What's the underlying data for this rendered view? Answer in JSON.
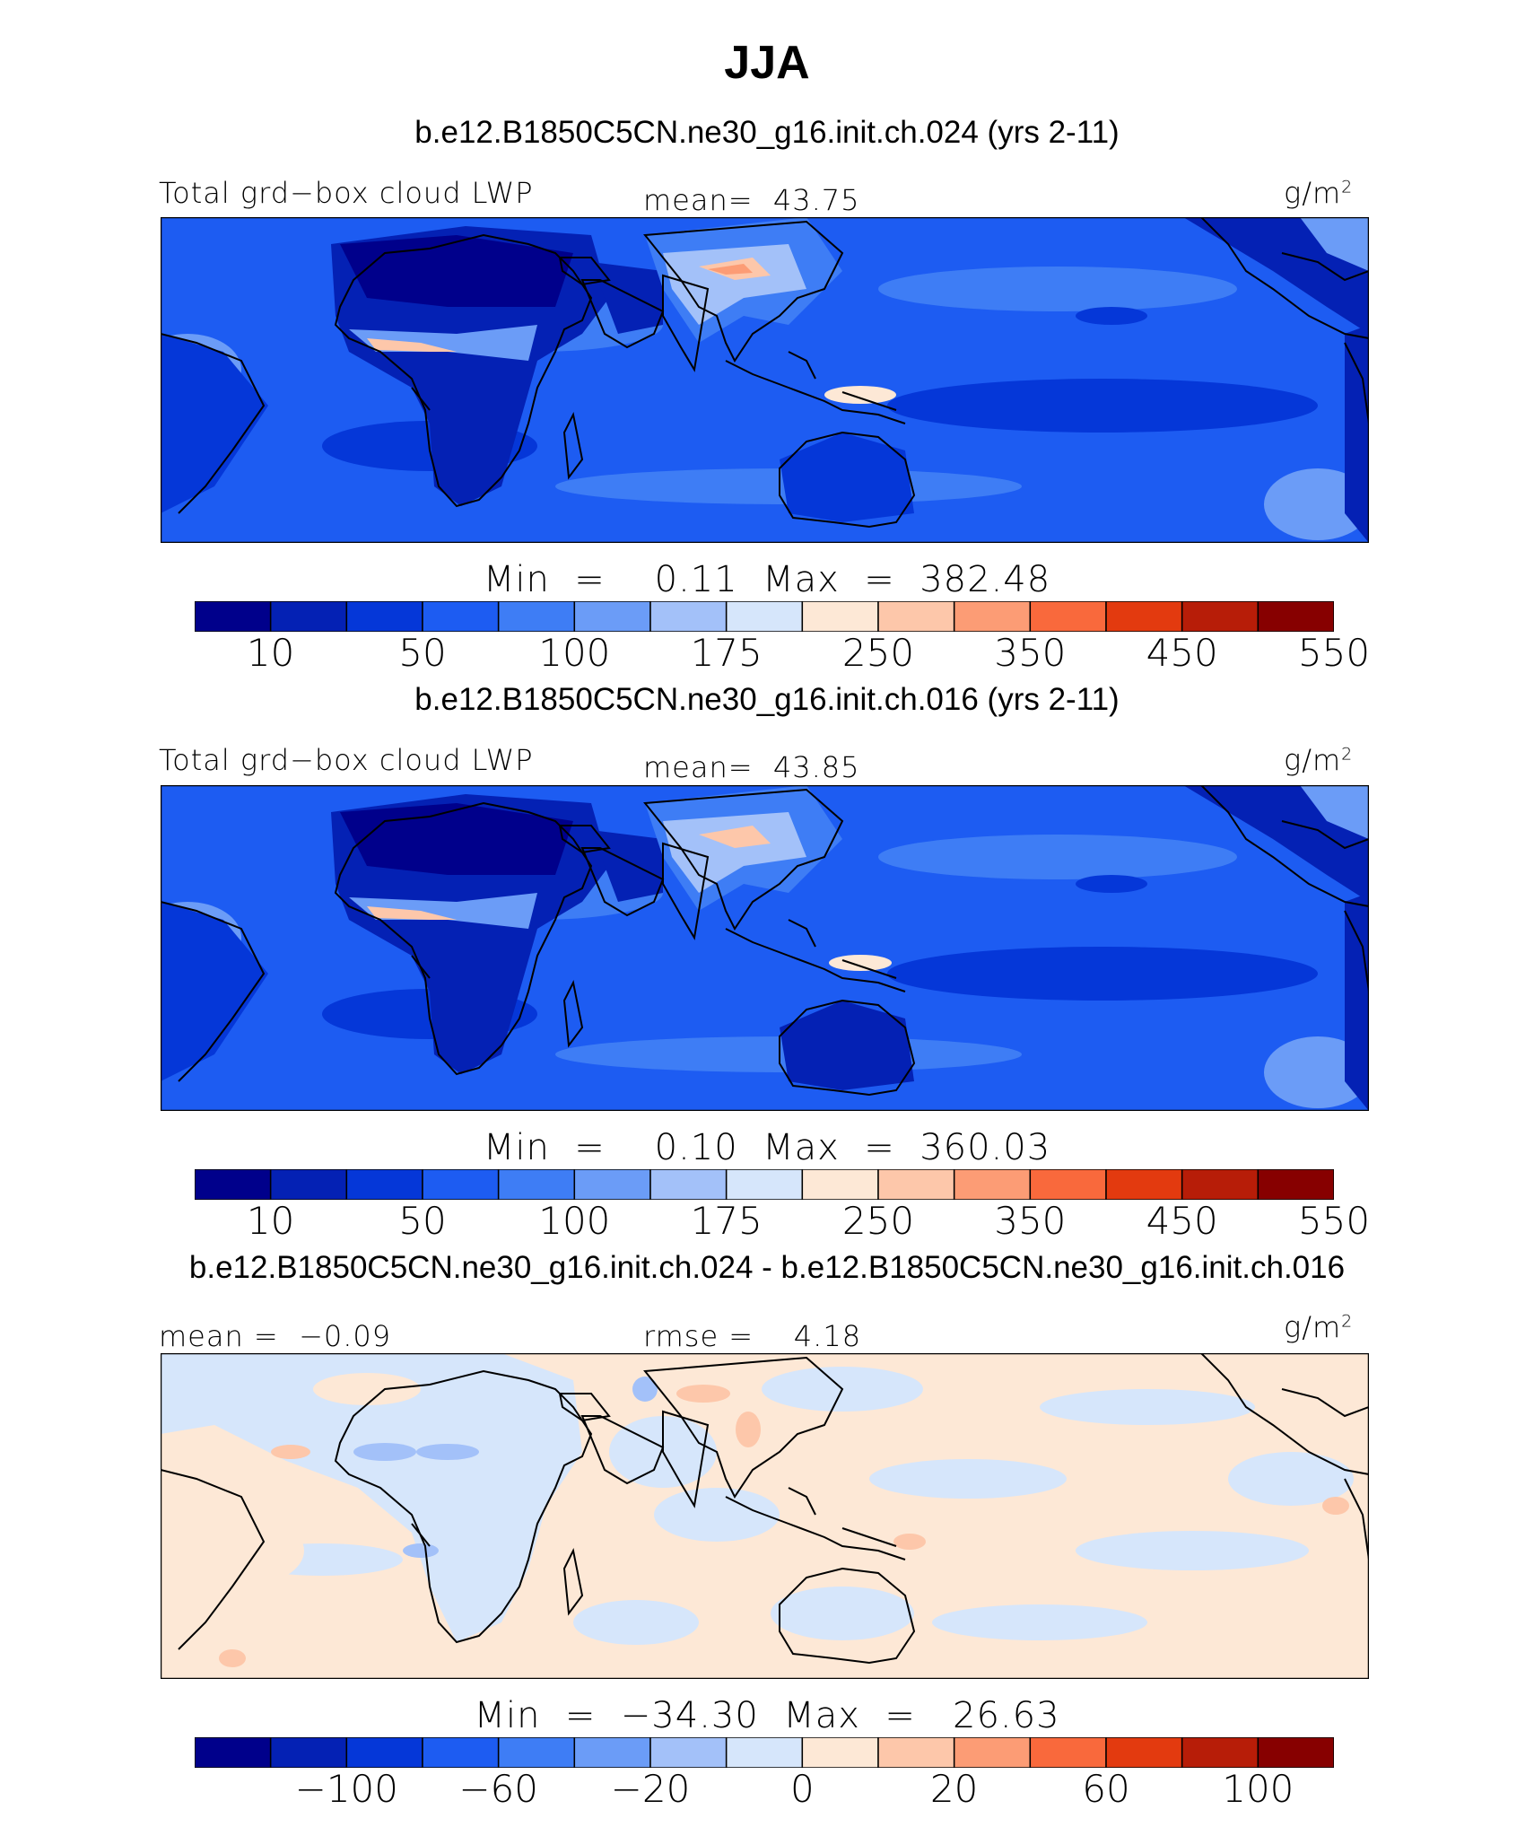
{
  "title": "JJA",
  "palette_abs": [
    "#00008b",
    "#0421b4",
    "#0537d8",
    "#1d5cf2",
    "#3e7df5",
    "#6b9cf7",
    "#a3c1f9",
    "#d6e6fb",
    "#fde8d6",
    "#fdc7aa",
    "#fc9c75",
    "#f9693c",
    "#e33a0f",
    "#b71d08",
    "#870000"
  ],
  "palette_diff": [
    "#00008b",
    "#0421b4",
    "#0537d8",
    "#1d5cf2",
    "#3e7df5",
    "#6b9cf7",
    "#a3c1f9",
    "#d6e6fb",
    "#fde8d6",
    "#fdc7aa",
    "#fc9c75",
    "#f9693c",
    "#e33a0f",
    "#b71d08",
    "#870000"
  ],
  "panels": [
    {
      "case_title": "b.e12.B1850C5CN.ne30_g16.init.ch.024 (yrs 2-11)",
      "left_label": "Total grd−box cloud LWP",
      "center_label": "mean=  43.75",
      "units_base": "g/m",
      "units_exp": "2",
      "minmax": "Min  =    0.11  Max  =  382.48",
      "ticks": [
        "10",
        "50",
        "100",
        "175",
        "250",
        "350",
        "450",
        "550"
      ]
    },
    {
      "case_title": "b.e12.B1850C5CN.ne30_g16.init.ch.016 (yrs 2-11)",
      "left_label": "Total grd−box cloud LWP",
      "center_label": "mean=  43.85",
      "units_base": "g/m",
      "units_exp": "2",
      "minmax": "Min  =    0.10  Max  =  360.03",
      "ticks": [
        "10",
        "50",
        "100",
        "175",
        "250",
        "350",
        "450",
        "550"
      ]
    },
    {
      "case_title": "b.e12.B1850C5CN.ne30_g16.init.ch.024 - b.e12.B1850C5CN.ne30_g16.init.ch.016",
      "left_label": "mean =  −0.09",
      "center_label": "rmse =    4.18",
      "units_base": "g/m",
      "units_exp": "2",
      "minmax": "Min  =  −34.30  Max  =   26.63",
      "ticks": [
        "−100",
        "−60",
        "−20",
        "0",
        "20",
        "60",
        "100"
      ]
    }
  ],
  "chart_data": [
    {
      "type": "heatmap",
      "title": "b.e12.B1850C5CN.ne30_g16.init.ch.024 (yrs 2-11)",
      "variable": "Total grd−box cloud LWP",
      "units": "g/m2",
      "mean": 43.75,
      "min": 0.11,
      "max": 382.48,
      "levels": [
        10,
        25,
        50,
        75,
        100,
        125,
        150,
        175,
        200,
        250,
        300,
        350,
        400,
        450,
        500,
        550
      ],
      "level_labels": [
        "10",
        "50",
        "100",
        "175",
        "250",
        "350",
        "450",
        "550"
      ]
    },
    {
      "type": "heatmap",
      "title": "b.e12.B1850C5CN.ne30_g16.init.ch.016 (yrs 2-11)",
      "variable": "Total grd−box cloud LWP",
      "units": "g/m2",
      "mean": 43.85,
      "min": 0.1,
      "max": 360.03,
      "levels": [
        10,
        25,
        50,
        75,
        100,
        125,
        150,
        175,
        200,
        250,
        300,
        350,
        400,
        450,
        500,
        550
      ],
      "level_labels": [
        "10",
        "50",
        "100",
        "175",
        "250",
        "350",
        "450",
        "550"
      ]
    },
    {
      "type": "heatmap",
      "title": "b.e12.B1850C5CN.ne30_g16.init.ch.024 - b.e12.B1850C5CN.ne30_g16.init.ch.016",
      "units": "g/m2",
      "mean": -0.09,
      "rmse": 4.18,
      "min": -34.3,
      "max": 26.63,
      "level_labels": [
        "−100",
        "−60",
        "−20",
        "0",
        "20",
        "60",
        "100"
      ]
    }
  ]
}
